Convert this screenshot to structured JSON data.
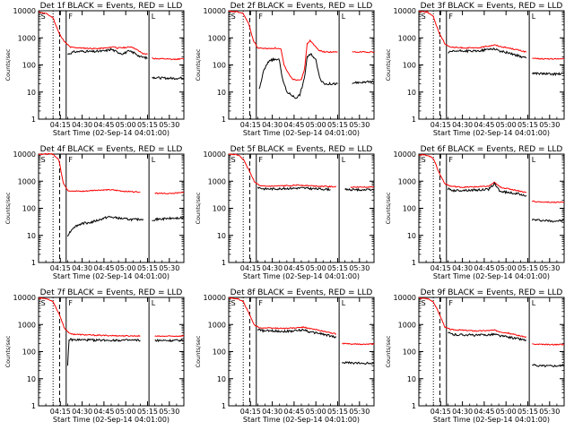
{
  "window": {
    "title": ""
  },
  "panels_common": {
    "y_ticks": [
      "10000",
      "1000",
      "100",
      "10",
      "1"
    ],
    "x_ticks": [
      "04:15",
      "04:30",
      "04:45",
      "05:00",
      "05:15",
      "05:30"
    ],
    "ylabel": "Counts/sec",
    "xlabel": "Start Time (02-Sep-14 04:01:00)",
    "series_colors": {
      "events": "#000000",
      "lld": "#ff0000"
    },
    "flag_labels": [
      "S",
      "F",
      "L"
    ]
  },
  "chart_data": [
    {
      "type": "line",
      "title": "Det 1f BLACK = Events, RED = LLD",
      "yscale": "log",
      "ylim": [
        1,
        10000
      ],
      "xlim_minutes": [
        0,
        100
      ],
      "events_start": 20,
      "lld": [
        [
          0,
          9000
        ],
        [
          5,
          8000
        ],
        [
          10,
          5500
        ],
        [
          14,
          1500
        ],
        [
          18,
          700
        ],
        [
          22,
          450
        ],
        [
          30,
          420
        ],
        [
          40,
          400
        ],
        [
          48,
          430
        ],
        [
          52,
          480
        ],
        [
          54,
          420
        ],
        [
          60,
          440
        ],
        [
          64,
          470
        ],
        [
          67,
          380
        ],
        [
          72,
          260
        ],
        [
          75,
          250
        ],
        [
          78,
          180
        ],
        [
          80,
          170
        ],
        [
          82,
          170
        ],
        [
          88,
          165
        ],
        [
          92,
          160
        ],
        [
          100,
          170
        ]
      ],
      "events": [
        [
          20,
          250
        ],
        [
          24,
          300
        ],
        [
          30,
          320
        ],
        [
          38,
          310
        ],
        [
          46,
          330
        ],
        [
          50,
          380
        ],
        [
          54,
          300
        ],
        [
          58,
          260
        ],
        [
          62,
          320
        ],
        [
          66,
          280
        ],
        [
          70,
          200
        ],
        [
          75,
          180
        ],
        [
          78,
          35
        ],
        [
          84,
          33
        ],
        [
          92,
          32
        ],
        [
          100,
          33
        ]
      ]
    },
    {
      "type": "line",
      "title": "Det 2f BLACK = Events, RED = LLD",
      "yscale": "log",
      "ylim": [
        1,
        10000
      ],
      "xlim_minutes": [
        0,
        100
      ],
      "events_start": 21,
      "lld": [
        [
          0,
          9500
        ],
        [
          6,
          9000
        ],
        [
          10,
          8000
        ],
        [
          14,
          3000
        ],
        [
          17,
          800
        ],
        [
          20,
          420
        ],
        [
          28,
          400
        ],
        [
          32,
          420
        ],
        [
          36,
          380
        ],
        [
          38,
          100
        ],
        [
          41,
          50
        ],
        [
          44,
          30
        ],
        [
          47,
          28
        ],
        [
          50,
          30
        ],
        [
          52,
          60
        ],
        [
          54,
          600
        ],
        [
          56,
          800
        ],
        [
          58,
          600
        ],
        [
          62,
          350
        ],
        [
          66,
          300
        ],
        [
          75,
          300
        ],
        [
          85,
          300
        ],
        [
          100,
          300
        ]
      ],
      "events": [
        [
          21,
          12
        ],
        [
          24,
          60
        ],
        [
          28,
          150
        ],
        [
          32,
          160
        ],
        [
          35,
          150
        ],
        [
          37,
          30
        ],
        [
          40,
          10
        ],
        [
          43,
          8
        ],
        [
          46,
          6
        ],
        [
          49,
          8
        ],
        [
          52,
          30
        ],
        [
          54,
          200
        ],
        [
          57,
          250
        ],
        [
          60,
          150
        ],
        [
          63,
          30
        ],
        [
          66,
          20
        ],
        [
          75,
          20
        ],
        [
          85,
          22
        ],
        [
          100,
          24
        ]
      ]
    },
    {
      "type": "line",
      "title": "Det 3f BLACK = Events, RED = LLD",
      "yscale": "log",
      "ylim": [
        1,
        10000
      ],
      "xlim_minutes": [
        0,
        100
      ],
      "events_start": 20,
      "lld": [
        [
          0,
          9500
        ],
        [
          6,
          9000
        ],
        [
          10,
          6000
        ],
        [
          14,
          1500
        ],
        [
          18,
          600
        ],
        [
          22,
          450
        ],
        [
          30,
          430
        ],
        [
          40,
          420
        ],
        [
          48,
          500
        ],
        [
          52,
          550
        ],
        [
          56,
          480
        ],
        [
          62,
          420
        ],
        [
          68,
          360
        ],
        [
          74,
          300
        ],
        [
          78,
          180
        ],
        [
          84,
          170
        ],
        [
          92,
          165
        ],
        [
          100,
          170
        ]
      ],
      "events": [
        [
          20,
          280
        ],
        [
          24,
          320
        ],
        [
          30,
          330
        ],
        [
          40,
          320
        ],
        [
          48,
          380
        ],
        [
          52,
          400
        ],
        [
          56,
          320
        ],
        [
          62,
          280
        ],
        [
          68,
          220
        ],
        [
          74,
          180
        ],
        [
          78,
          50
        ],
        [
          84,
          48
        ],
        [
          92,
          46
        ],
        [
          100,
          47
        ]
      ]
    },
    {
      "type": "line",
      "title": "Det 4f BLACK = Events, RED = LLD",
      "yscale": "log",
      "ylim": [
        1,
        10000
      ],
      "xlim_minutes": [
        0,
        100
      ],
      "events_start": 20,
      "lld": [
        [
          0,
          10000
        ],
        [
          10,
          10000
        ],
        [
          14,
          6000
        ],
        [
          17,
          900
        ],
        [
          20,
          450
        ],
        [
          30,
          420
        ],
        [
          40,
          470
        ],
        [
          50,
          480
        ],
        [
          60,
          420
        ],
        [
          70,
          400
        ],
        [
          80,
          360
        ],
        [
          90,
          350
        ],
        [
          100,
          380
        ]
      ],
      "events": [
        [
          20,
          10
        ],
        [
          24,
          20
        ],
        [
          30,
          28
        ],
        [
          36,
          30
        ],
        [
          42,
          38
        ],
        [
          48,
          48
        ],
        [
          54,
          44
        ],
        [
          60,
          40
        ],
        [
          66,
          38
        ],
        [
          72,
          40
        ],
        [
          78,
          38
        ],
        [
          84,
          40
        ],
        [
          90,
          42
        ],
        [
          100,
          44
        ]
      ]
    },
    {
      "type": "line",
      "title": "Det 5f BLACK = Events, RED = LLD",
      "yscale": "log",
      "ylim": [
        1,
        10000
      ],
      "xlim_minutes": [
        0,
        100
      ],
      "events_start": 20,
      "lld": [
        [
          0,
          10000
        ],
        [
          6,
          9500
        ],
        [
          10,
          6500
        ],
        [
          14,
          2500
        ],
        [
          18,
          900
        ],
        [
          22,
          650
        ],
        [
          30,
          650
        ],
        [
          40,
          680
        ],
        [
          48,
          720
        ],
        [
          56,
          680
        ],
        [
          64,
          650
        ],
        [
          74,
          620
        ],
        [
          84,
          600
        ],
        [
          100,
          620
        ]
      ],
      "events": [
        [
          20,
          600
        ],
        [
          24,
          520
        ],
        [
          30,
          520
        ],
        [
          40,
          540
        ],
        [
          50,
          560
        ],
        [
          60,
          520
        ],
        [
          70,
          500
        ],
        [
          80,
          490
        ],
        [
          90,
          480
        ],
        [
          100,
          490
        ]
      ]
    },
    {
      "type": "line",
      "title": "Det 6f BLACK = Events, RED = LLD",
      "yscale": "log",
      "ylim": [
        1,
        10000
      ],
      "xlim_minutes": [
        0,
        100
      ],
      "events_start": 20,
      "lld": [
        [
          0,
          9500
        ],
        [
          6,
          9000
        ],
        [
          10,
          7000
        ],
        [
          14,
          2000
        ],
        [
          18,
          800
        ],
        [
          22,
          650
        ],
        [
          30,
          600
        ],
        [
          40,
          620
        ],
        [
          48,
          650
        ],
        [
          52,
          900
        ],
        [
          56,
          600
        ],
        [
          62,
          520
        ],
        [
          68,
          450
        ],
        [
          74,
          380
        ],
        [
          78,
          180
        ],
        [
          84,
          170
        ],
        [
          92,
          165
        ],
        [
          100,
          170
        ]
      ],
      "events": [
        [
          20,
          520
        ],
        [
          24,
          450
        ],
        [
          30,
          460
        ],
        [
          40,
          470
        ],
        [
          48,
          500
        ],
        [
          52,
          800
        ],
        [
          56,
          420
        ],
        [
          62,
          380
        ],
        [
          68,
          340
        ],
        [
          74,
          300
        ],
        [
          78,
          38
        ],
        [
          84,
          36
        ],
        [
          92,
          34
        ],
        [
          100,
          35
        ]
      ]
    },
    {
      "type": "line",
      "title": "Det 7f BLACK = Events, RED = LLD",
      "yscale": "log",
      "ylim": [
        1,
        10000
      ],
      "xlim_minutes": [
        0,
        100
      ],
      "events_start": 20,
      "lld": [
        [
          0,
          9500
        ],
        [
          6,
          9000
        ],
        [
          10,
          7000
        ],
        [
          14,
          2500
        ],
        [
          18,
          700
        ],
        [
          22,
          450
        ],
        [
          30,
          420
        ],
        [
          40,
          400
        ],
        [
          50,
          390
        ],
        [
          60,
          380
        ],
        [
          70,
          380
        ],
        [
          80,
          370
        ],
        [
          90,
          370
        ],
        [
          100,
          380
        ]
      ],
      "events": [
        [
          20,
          30
        ],
        [
          21,
          280
        ],
        [
          24,
          270
        ],
        [
          30,
          270
        ],
        [
          40,
          265
        ],
        [
          50,
          265
        ],
        [
          60,
          262
        ],
        [
          70,
          262
        ],
        [
          80,
          260
        ],
        [
          90,
          258
        ],
        [
          100,
          260
        ]
      ]
    },
    {
      "type": "line",
      "title": "Det 8f BLACK = Events, RED = LLD",
      "yscale": "log",
      "ylim": [
        1,
        10000
      ],
      "xlim_minutes": [
        0,
        100
      ],
      "events_start": 20,
      "lld": [
        [
          0,
          9500
        ],
        [
          6,
          9000
        ],
        [
          10,
          7000
        ],
        [
          14,
          2500
        ],
        [
          18,
          900
        ],
        [
          22,
          750
        ],
        [
          30,
          740
        ],
        [
          40,
          720
        ],
        [
          48,
          760
        ],
        [
          52,
          800
        ],
        [
          56,
          700
        ],
        [
          62,
          620
        ],
        [
          68,
          520
        ],
        [
          74,
          450
        ],
        [
          78,
          200
        ],
        [
          84,
          190
        ],
        [
          92,
          185
        ],
        [
          100,
          190
        ]
      ],
      "events": [
        [
          20,
          650
        ],
        [
          24,
          580
        ],
        [
          30,
          580
        ],
        [
          40,
          560
        ],
        [
          48,
          600
        ],
        [
          52,
          650
        ],
        [
          56,
          520
        ],
        [
          62,
          480
        ],
        [
          68,
          400
        ],
        [
          74,
          340
        ],
        [
          78,
          40
        ],
        [
          84,
          38
        ],
        [
          92,
          37
        ],
        [
          100,
          38
        ]
      ]
    },
    {
      "type": "line",
      "title": "Det 9f BLACK = Events, RED = LLD",
      "yscale": "log",
      "ylim": [
        1,
        10000
      ],
      "xlim_minutes": [
        0,
        100
      ],
      "events_start": 20,
      "lld": [
        [
          0,
          9500
        ],
        [
          6,
          9000
        ],
        [
          10,
          7000
        ],
        [
          14,
          2500
        ],
        [
          18,
          800
        ],
        [
          22,
          650
        ],
        [
          30,
          620
        ],
        [
          40,
          580
        ],
        [
          48,
          600
        ],
        [
          52,
          620
        ],
        [
          56,
          540
        ],
        [
          62,
          480
        ],
        [
          68,
          400
        ],
        [
          74,
          340
        ],
        [
          78,
          190
        ],
        [
          84,
          185
        ],
        [
          92,
          180
        ],
        [
          100,
          185
        ]
      ],
      "events": [
        [
          20,
          500
        ],
        [
          24,
          420
        ],
        [
          30,
          420
        ],
        [
          40,
          400
        ],
        [
          48,
          420
        ],
        [
          52,
          440
        ],
        [
          56,
          380
        ],
        [
          62,
          340
        ],
        [
          68,
          300
        ],
        [
          74,
          260
        ],
        [
          78,
          32
        ],
        [
          84,
          30
        ],
        [
          92,
          30
        ],
        [
          100,
          31
        ]
      ]
    }
  ]
}
